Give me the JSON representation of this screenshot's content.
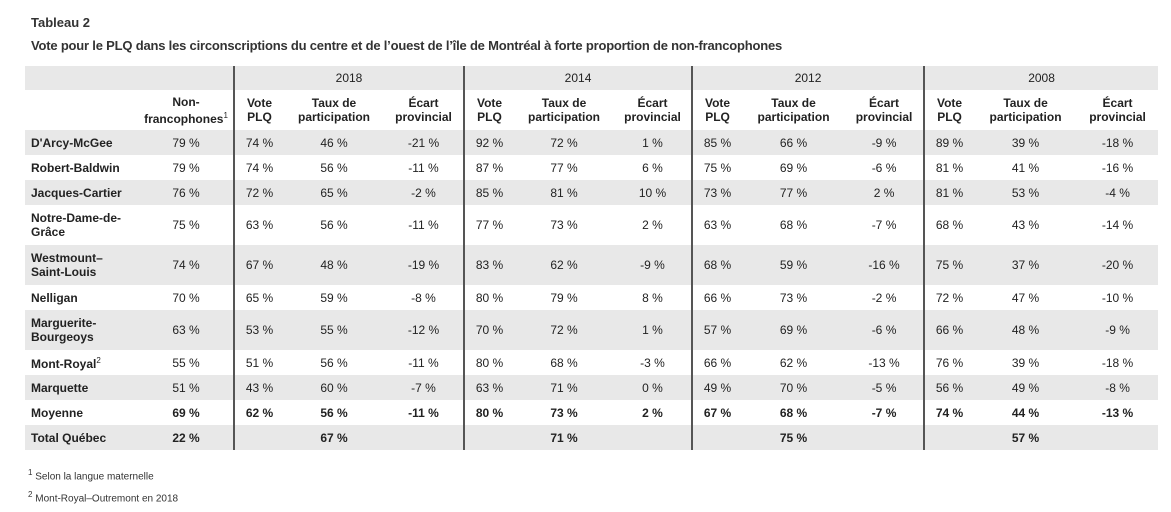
{
  "caption": {
    "label": "Tableau 2",
    "title": "Vote pour le PLQ dans les circonscriptions du centre et de l’ouest de l’île de Montréal à forte proportion de non-francophones"
  },
  "years": [
    "2018",
    "2014",
    "2012",
    "2008"
  ],
  "headers": {
    "nonfranco": "Non-\nfrancophones",
    "nonfranco_sup": "1",
    "vote": "Vote\nPLQ",
    "taux": "Taux de\nparticipation",
    "ecart": "Écart\nprovincial"
  },
  "rows": [
    {
      "name": "D'Arcy-McGee",
      "sup": "",
      "nf": "79 %",
      "v": [
        "74 %",
        "46 %",
        "-21 %",
        "92 %",
        "72 %",
        "1 %",
        "85 %",
        "66 %",
        "-9 %",
        "89 %",
        "39 %",
        "-18 %"
      ]
    },
    {
      "name": "Robert-Baldwin",
      "sup": "",
      "nf": "79 %",
      "v": [
        "74 %",
        "56 %",
        "-11 %",
        "87 %",
        "77 %",
        "6 %",
        "75 %",
        "69 %",
        "-6 %",
        "81 %",
        "41 %",
        "-16 %"
      ]
    },
    {
      "name": "Jacques-Cartier",
      "sup": "",
      "nf": "76 %",
      "v": [
        "72 %",
        "65 %",
        "-2 %",
        "85 %",
        "81 %",
        "10 %",
        "73 %",
        "77 %",
        "2 %",
        "81 %",
        "53 %",
        "-4 %"
      ]
    },
    {
      "name": "Notre-Dame-de-\nGrâce",
      "sup": "",
      "nf": "75 %",
      "v": [
        "63 %",
        "56 %",
        "-11 %",
        "77 %",
        "73 %",
        "2 %",
        "63 %",
        "68 %",
        "-7 %",
        "68 %",
        "43 %",
        "-14 %"
      ]
    },
    {
      "name": "Westmount–\nSaint-Louis",
      "sup": "",
      "nf": "74 %",
      "v": [
        "67 %",
        "48 %",
        "-19 %",
        "83 %",
        "62 %",
        "-9 %",
        "68 %",
        "59 %",
        "-16 %",
        "75 %",
        "37 %",
        "-20 %"
      ]
    },
    {
      "name": "Nelligan",
      "sup": "",
      "nf": "70 %",
      "v": [
        "65 %",
        "59 %",
        "-8 %",
        "80 %",
        "79 %",
        "8 %",
        "66 %",
        "73 %",
        "-2 %",
        "72 %",
        "47 %",
        "-10 %"
      ]
    },
    {
      "name": "Marguerite-\nBourgeoys",
      "sup": "",
      "nf": "63 %",
      "v": [
        "53 %",
        "55 %",
        "-12 %",
        "70 %",
        "72 %",
        "1 %",
        "57 %",
        "69 %",
        "-6 %",
        "66 %",
        "48 %",
        "-9 %"
      ]
    },
    {
      "name": "Mont-Royal",
      "sup": "2",
      "nf": "55 %",
      "v": [
        "51 %",
        "56 %",
        "-11 %",
        "80 %",
        "68 %",
        "-3 %",
        "66 %",
        "62 %",
        "-13 %",
        "76 %",
        "39 %",
        "-18 %"
      ]
    },
    {
      "name": "Marquette",
      "sup": "",
      "nf": "51 %",
      "v": [
        "43 %",
        "60 %",
        "-7 %",
        "63 %",
        "71 %",
        "0 %",
        "49 %",
        "70 %",
        "-5 %",
        "56 %",
        "49 %",
        "-8 %"
      ]
    }
  ],
  "average": {
    "name": "Moyenne",
    "nf": "69 %",
    "v": [
      "62 %",
      "56 %",
      "-11 %",
      "80 %",
      "73 %",
      "2 %",
      "67 %",
      "68 %",
      "-7 %",
      "74 %",
      "44 %",
      "-13 %"
    ]
  },
  "total": {
    "name": "Total Québec",
    "nf": "22 %",
    "v": [
      "",
      "67 %",
      "",
      "",
      "71 %",
      "",
      "",
      "75 %",
      "",
      "",
      "57 %",
      ""
    ]
  },
  "notes": {
    "n1_mark": "1",
    "n1_text": "Selon la langue maternelle",
    "n2_mark": "2",
    "n2_text": "Mont-Royal–Outremont en 2018"
  },
  "colors": {
    "shade": "#e8e8e8",
    "separator": "#555555"
  }
}
